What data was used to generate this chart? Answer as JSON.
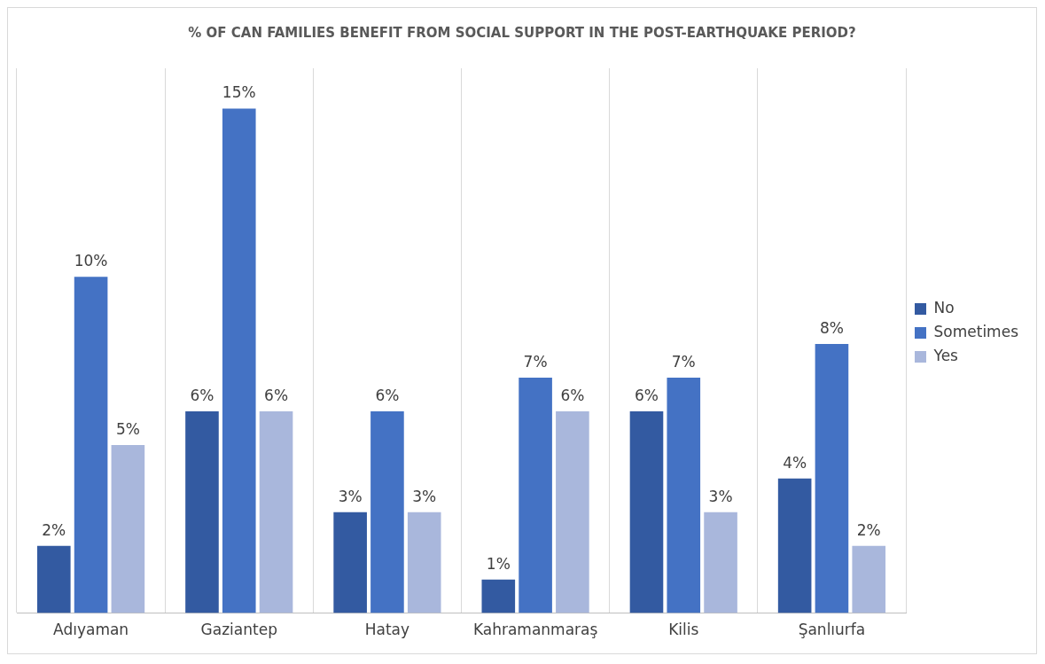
{
  "chart_data": {
    "type": "bar",
    "title": "% OF CAN FAMILIES BENEFIT FROM SOCIAL SUPPORT IN THE POST-EARTHQUAKE PERIOD?",
    "categories": [
      "Adıyaman",
      "Gaziantep",
      "Hatay",
      "Kahramanmaraş",
      "Kilis",
      "Şanlıurfa"
    ],
    "series": [
      {
        "name": "No",
        "color": "#335aa1",
        "values": [
          2,
          6,
          3,
          1,
          6,
          4
        ],
        "value_labels": [
          "2%",
          "6%",
          "3%",
          "1%",
          "6%",
          "4%"
        ]
      },
      {
        "name": "Sometimes",
        "color": "#4472c4",
        "values": [
          10,
          15,
          6,
          7,
          7,
          8
        ],
        "value_labels": [
          "10%",
          "15%",
          "6%",
          "7%",
          "7%",
          "8%"
        ]
      },
      {
        "name": "Yes",
        "color": "#a9b7dc",
        "values": [
          5,
          6,
          3,
          6,
          3,
          2
        ],
        "value_labels": [
          "5%",
          "6%",
          "3%",
          "6%",
          "3%",
          "2%"
        ]
      }
    ],
    "grid": "x",
    "legend": "right"
  }
}
